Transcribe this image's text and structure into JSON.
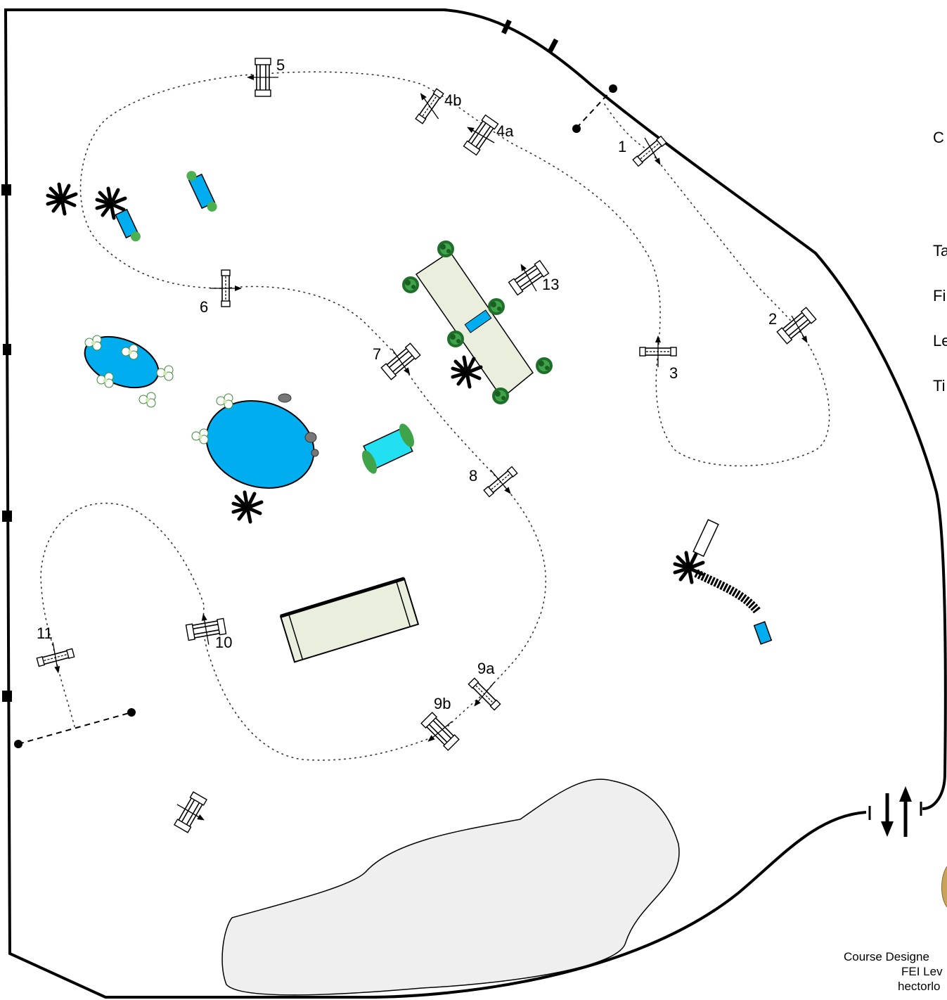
{
  "jump_labels": {
    "j1": "1",
    "j2": "2",
    "j3": "3",
    "j4a": "4a",
    "j4b": "4b",
    "j5": "5",
    "j6": "6",
    "j7": "7",
    "j8": "8",
    "j9a": "9a",
    "j9b": "9b",
    "j10": "10",
    "j11": "11",
    "j13": "13"
  },
  "side_panel": {
    "line1": "C",
    "line2": "Ta",
    "line3": "Fi",
    "line4": "Le",
    "line5": "Ti"
  },
  "footer": {
    "line1": "Course Designe",
    "line2": "FEI Lev",
    "line3": "hectorlo"
  },
  "colors": {
    "water": "#00aeef",
    "water_bright": "#22e0f2",
    "pad": "#e9efdc",
    "sand": "#efefef",
    "shrub": "#2e8b3a",
    "flower": "#ffffff"
  }
}
